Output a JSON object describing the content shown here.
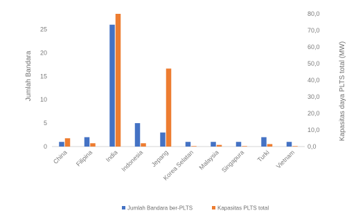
{
  "chart_data": {
    "type": "bar",
    "categories": [
      "China",
      "Filipina",
      "India",
      "Indonesia",
      "Jepang",
      "Korea Selatan",
      "Malaysia",
      "Singapura",
      "Turki",
      "Vietnam"
    ],
    "series": [
      {
        "name": "Jumlah Bandara ber-PLTS",
        "color": "#4472c4",
        "axis": "left",
        "values": [
          1,
          2,
          26,
          5,
          3,
          1,
          1,
          1,
          2,
          1
        ]
      },
      {
        "name": "Kapasitas PLTS total",
        "color": "#ed7d31",
        "axis": "right",
        "values": [
          5,
          2,
          80,
          2,
          47,
          0.3,
          1,
          0.3,
          1.5,
          0.3
        ]
      }
    ],
    "ylabel": "Jumlah Bandara",
    "y2label": "Kapasitas daya PLTS total (MW)",
    "ylim": [
      0,
      30
    ],
    "y2lim": [
      0,
      80
    ],
    "yticks": [
      "0",
      "5",
      "10",
      "15",
      "20",
      "25"
    ],
    "y2ticks": [
      "0,0",
      "10,0",
      "20,0",
      "30,0",
      "40,0",
      "50,0",
      "60,0",
      "70,0",
      "80,0"
    ],
    "legend_position": "bottom",
    "grid": false
  }
}
